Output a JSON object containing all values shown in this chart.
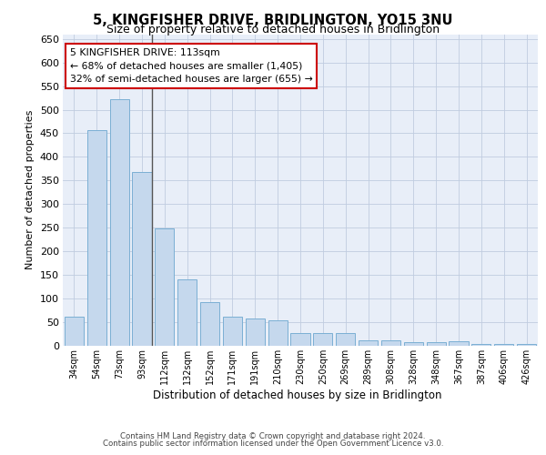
{
  "title": "5, KINGFISHER DRIVE, BRIDLINGTON, YO15 3NU",
  "subtitle": "Size of property relative to detached houses in Bridlington",
  "xlabel": "Distribution of detached houses by size in Bridlington",
  "ylabel": "Number of detached properties",
  "categories": [
    "34sqm",
    "54sqm",
    "73sqm",
    "93sqm",
    "112sqm",
    "132sqm",
    "152sqm",
    "171sqm",
    "191sqm",
    "210sqm",
    "230sqm",
    "250sqm",
    "269sqm",
    "289sqm",
    "308sqm",
    "328sqm",
    "348sqm",
    "367sqm",
    "387sqm",
    "406sqm",
    "426sqm"
  ],
  "values": [
    62,
    457,
    523,
    368,
    248,
    140,
    92,
    62,
    57,
    54,
    27,
    27,
    27,
    12,
    12,
    7,
    7,
    10,
    4,
    4,
    4
  ],
  "bar_color": "#c5d8ed",
  "bar_edge_color": "#7bafd4",
  "annotation_line1": "5 KINGFISHER DRIVE: 113sqm",
  "annotation_line2": "← 68% of detached houses are smaller (1,405)",
  "annotation_line3": "32% of semi-detached houses are larger (655) →",
  "ylim_max": 660,
  "yticks": [
    0,
    50,
    100,
    150,
    200,
    250,
    300,
    350,
    400,
    450,
    500,
    550,
    600,
    650
  ],
  "plot_bg_color": "#e8eef8",
  "grid_color": "#c0cce0",
  "footer_line1": "Contains HM Land Registry data © Crown copyright and database right 2024.",
  "footer_line2": "Contains public sector information licensed under the Open Government Licence v3.0."
}
